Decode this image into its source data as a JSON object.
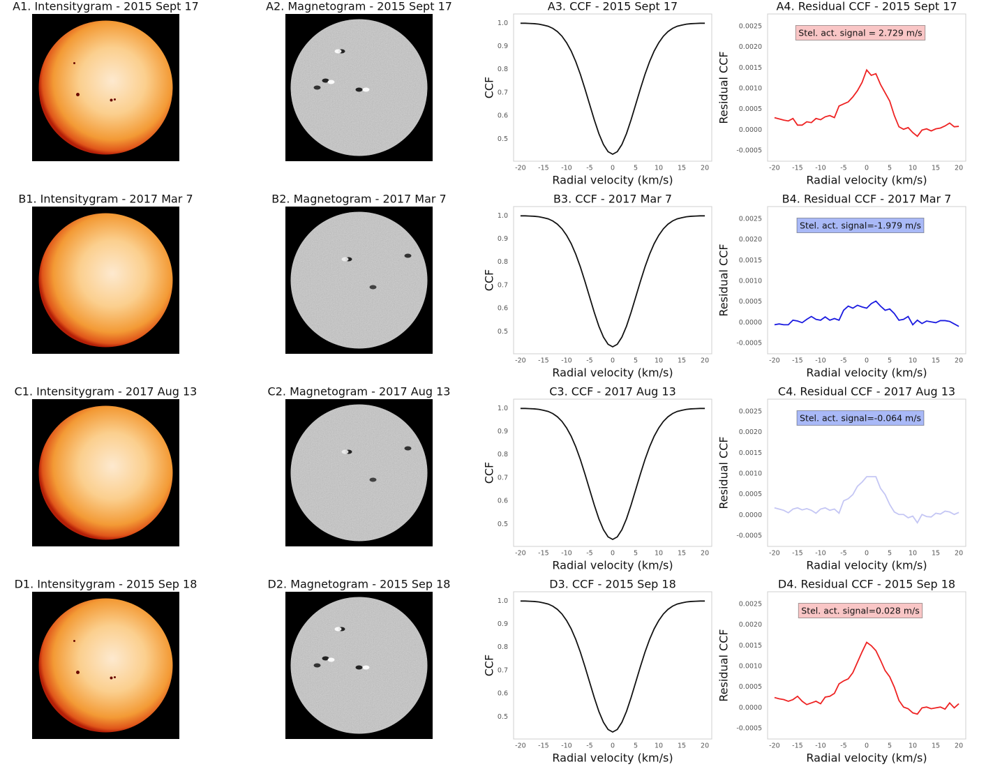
{
  "images": [
    {
      "title": "A1. Intensitygram - 2015 Sept 17",
      "kind": "intensity"
    },
    {
      "title": "A2. Magnetogram - 2015 Sept 17",
      "kind": "magnetogram"
    },
    {
      "title": "B1. Intensitygram - 2017 Mar 7",
      "kind": "intensity"
    },
    {
      "title": "B2. Magnetogram - 2017 Mar 7",
      "kind": "magnetogram"
    },
    {
      "title": "C1. Intensitygram - 2017 Aug 13",
      "kind": "intensity"
    },
    {
      "title": "C2. Magnetogram - 2017 Aug 13",
      "kind": "magnetogram"
    },
    {
      "title": "D1. Intensitygram - 2015 Sep 18",
      "kind": "intensity"
    },
    {
      "title": "D2. Magnetogram - 2015 Sep 18",
      "kind": "magnetogram"
    }
  ],
  "chart_data": [
    {
      "type": "line",
      "title": "A3. CCF - 2015 Sept 17",
      "xlabel": "Radial velocity (km/s)",
      "ylabel": "CCF",
      "x": [
        -20,
        -19,
        -18,
        -17,
        -16,
        -15,
        -14,
        -13,
        -12,
        -11,
        -10,
        -9,
        -8,
        -7,
        -6,
        -5,
        -4,
        -3,
        -2,
        -1,
        0,
        1,
        2,
        3,
        4,
        5,
        6,
        7,
        8,
        9,
        10,
        11,
        12,
        13,
        14,
        15,
        16,
        17,
        18,
        19,
        20
      ],
      "series": [
        {
          "color": "#111111",
          "values": [
            1.0,
            1.0,
            0.999,
            0.998,
            0.996,
            0.992,
            0.987,
            0.978,
            0.964,
            0.944,
            0.916,
            0.88,
            0.834,
            0.779,
            0.716,
            0.65,
            0.584,
            0.524,
            0.477,
            0.446,
            0.435,
            0.446,
            0.477,
            0.524,
            0.584,
            0.65,
            0.716,
            0.779,
            0.834,
            0.88,
            0.916,
            0.944,
            0.964,
            0.978,
            0.987,
            0.992,
            0.996,
            0.998,
            0.999,
            1.0,
            1.0
          ]
        }
      ],
      "xlim": [
        -21.5,
        21.5
      ],
      "ylim": [
        0.405,
        1.04
      ],
      "xticks": [
        -20,
        -15,
        -10,
        -5,
        0,
        5,
        10,
        15,
        20
      ],
      "yticks": [
        0.5,
        0.6,
        0.7,
        0.8,
        0.9,
        {
          "value": 1,
          "label": "1.0"
        }
      ],
      "grid": false
    },
    {
      "type": "line",
      "title": "A4. Residual CCF - 2015 Sept 17",
      "xlabel": "Radial velocity (km/s)",
      "ylabel": "Residual CCF",
      "x": [
        -20,
        -19,
        -18,
        -17,
        -16,
        -15,
        -14,
        -13,
        -12,
        -11,
        -10,
        -9,
        -8,
        -7,
        -6,
        -5,
        -4,
        -3,
        -2,
        -1,
        0,
        1,
        2,
        3,
        4,
        5,
        6,
        7,
        8,
        9,
        10,
        11,
        12,
        13,
        14,
        15,
        16,
        17,
        18,
        19,
        20
      ],
      "series": [
        {
          "color": "#ee2222",
          "values": [
            0.0003,
            0.00027,
            0.00024,
            0.00022,
            0.00028,
            0.00012,
            0.00012,
            0.0002,
            0.00018,
            0.00028,
            0.00025,
            0.00032,
            0.00035,
            0.0003,
            0.00058,
            0.00063,
            0.00068,
            0.0008,
            0.00095,
            0.00115,
            0.00145,
            0.00132,
            0.00136,
            0.0011,
            0.0009,
            0.0007,
            0.00035,
            8e-05,
            2e-05,
            6e-05,
            -6e-05,
            -0.00015,
            0,
            3e-05,
            -2e-05,
            3e-05,
            5e-05,
            0.0001,
            0.00017,
            8e-05,
            9e-05
          ]
        }
      ],
      "xlim": [
        -21.5,
        21.5
      ],
      "ylim": [
        -0.00075,
        0.0028
      ],
      "xticks": [
        -20,
        -15,
        -10,
        -5,
        0,
        5,
        10,
        15,
        20
      ],
      "yticks": [
        {
          "value": -0.0005,
          "label": "-0.0005"
        },
        {
          "value": 0,
          "label": "0.0000"
        },
        {
          "value": 0.0005,
          "label": "0.0005"
        },
        {
          "value": 0.001,
          "label": "0.0010"
        },
        {
          "value": 0.0015,
          "label": "0.0015"
        },
        {
          "value": 0.002,
          "label": "0.0020"
        },
        {
          "value": 0.0025,
          "label": "0.0025"
        }
      ],
      "annotation": "Stel. act. signal = 2.729 m/s",
      "annotation_color": "#f9c6c6",
      "grid": false
    },
    {
      "type": "line",
      "title": "B3. CCF - 2017 Mar 7",
      "xlabel": "Radial velocity (km/s)",
      "ylabel": "CCF",
      "x": [
        -20,
        -19,
        -18,
        -17,
        -16,
        -15,
        -14,
        -13,
        -12,
        -11,
        -10,
        -9,
        -8,
        -7,
        -6,
        -5,
        -4,
        -3,
        -2,
        -1,
        0,
        1,
        2,
        3,
        4,
        5,
        6,
        7,
        8,
        9,
        10,
        11,
        12,
        13,
        14,
        15,
        16,
        17,
        18,
        19,
        20
      ],
      "series": [
        {
          "color": "#111111",
          "values": [
            1.0,
            1.0,
            0.999,
            0.998,
            0.996,
            0.992,
            0.987,
            0.978,
            0.964,
            0.944,
            0.916,
            0.88,
            0.834,
            0.779,
            0.716,
            0.65,
            0.584,
            0.524,
            0.477,
            0.446,
            0.435,
            0.446,
            0.477,
            0.524,
            0.584,
            0.65,
            0.716,
            0.779,
            0.834,
            0.88,
            0.916,
            0.944,
            0.964,
            0.978,
            0.987,
            0.992,
            0.996,
            0.998,
            0.999,
            1.0,
            1.0
          ]
        }
      ],
      "xlim": [
        -21.5,
        21.5
      ],
      "ylim": [
        0.405,
        1.04
      ],
      "xticks": [
        -20,
        -15,
        -10,
        -5,
        0,
        5,
        10,
        15,
        20
      ],
      "yticks": [
        0.5,
        0.6,
        0.7,
        0.8,
        0.9,
        {
          "value": 1,
          "label": "1.0"
        }
      ],
      "grid": false
    },
    {
      "type": "line",
      "title": "B4. Residual CCF - 2017 Mar 7",
      "xlabel": "Radial velocity (km/s)",
      "ylabel": "Residual CCF",
      "x": [
        -20,
        -19,
        -18,
        -17,
        -16,
        -15,
        -14,
        -13,
        -12,
        -11,
        -10,
        -9,
        -8,
        -7,
        -6,
        -5,
        -4,
        -3,
        -2,
        -1,
        0,
        1,
        2,
        3,
        4,
        5,
        6,
        7,
        8,
        9,
        10,
        11,
        12,
        13,
        14,
        15,
        16,
        17,
        18,
        19,
        20
      ],
      "series": [
        {
          "color": "#1a1ae0",
          "values": [
            -5e-05,
            -3e-05,
            -5e-05,
            -5e-05,
            6e-05,
            4e-05,
            0,
            8e-05,
            0.00015,
            8e-05,
            6e-05,
            0.00014,
            6e-05,
            0.0001,
            6e-05,
            0.0003,
            0.0004,
            0.00035,
            0.00042,
            0.00038,
            0.00035,
            0.00046,
            0.00052,
            0.0004,
            0.0003,
            0.00033,
            0.00022,
            6e-05,
            8e-05,
            0.00015,
            -5e-05,
            6e-05,
            -2e-05,
            4e-05,
            2e-05,
            0,
            5e-05,
            5e-05,
            3e-05,
            -3e-05,
            -9e-05
          ]
        }
      ],
      "xlim": [
        -21.5,
        21.5
      ],
      "ylim": [
        -0.00075,
        0.0028
      ],
      "xticks": [
        -20,
        -15,
        -10,
        -5,
        0,
        5,
        10,
        15,
        20
      ],
      "yticks": [
        {
          "value": -0.0005,
          "label": "-0.0005"
        },
        {
          "value": 0,
          "label": "0.0000"
        },
        {
          "value": 0.0005,
          "label": "0.0005"
        },
        {
          "value": 0.001,
          "label": "0.0010"
        },
        {
          "value": 0.0015,
          "label": "0.0015"
        },
        {
          "value": 0.002,
          "label": "0.0020"
        },
        {
          "value": 0.0025,
          "label": "0.0025"
        }
      ],
      "annotation": "Stel. act. signal=-1.979 m/s",
      "annotation_color": "#a9b9f7",
      "grid": false
    },
    {
      "type": "line",
      "title": "C3. CCF - 2017 Aug 13",
      "xlabel": "Radial velocity (km/s)",
      "ylabel": "CCF",
      "x": [
        -20,
        -19,
        -18,
        -17,
        -16,
        -15,
        -14,
        -13,
        -12,
        -11,
        -10,
        -9,
        -8,
        -7,
        -6,
        -5,
        -4,
        -3,
        -2,
        -1,
        0,
        1,
        2,
        3,
        4,
        5,
        6,
        7,
        8,
        9,
        10,
        11,
        12,
        13,
        14,
        15,
        16,
        17,
        18,
        19,
        20
      ],
      "series": [
        {
          "color": "#111111",
          "values": [
            1.0,
            1.0,
            0.999,
            0.998,
            0.996,
            0.992,
            0.987,
            0.978,
            0.964,
            0.944,
            0.916,
            0.88,
            0.834,
            0.779,
            0.716,
            0.65,
            0.584,
            0.524,
            0.477,
            0.446,
            0.435,
            0.446,
            0.477,
            0.524,
            0.584,
            0.65,
            0.716,
            0.779,
            0.834,
            0.88,
            0.916,
            0.944,
            0.964,
            0.978,
            0.987,
            0.992,
            0.996,
            0.998,
            0.999,
            1.0,
            1.0
          ]
        }
      ],
      "xlim": [
        -21.5,
        21.5
      ],
      "ylim": [
        0.405,
        1.04
      ],
      "xticks": [
        -20,
        -15,
        -10,
        -5,
        0,
        5,
        10,
        15,
        20
      ],
      "yticks": [
        0.5,
        0.6,
        0.7,
        0.8,
        0.9,
        {
          "value": 1,
          "label": "1.0"
        }
      ],
      "grid": false
    },
    {
      "type": "line",
      "title": "C4. Residual CCF - 2017 Aug 13",
      "xlabel": "Radial velocity (km/s)",
      "ylabel": "Residual CCF",
      "x": [
        -20,
        -19,
        -18,
        -17,
        -16,
        -15,
        -14,
        -13,
        -12,
        -11,
        -10,
        -9,
        -8,
        -7,
        -6,
        -5,
        -4,
        -3,
        -2,
        -1,
        0,
        1,
        2,
        3,
        4,
        5,
        6,
        7,
        8,
        9,
        10,
        11,
        12,
        13,
        14,
        15,
        16,
        17,
        18,
        19,
        20
      ],
      "series": [
        {
          "color": "#c4c6f4",
          "values": [
            0.00018,
            0.00015,
            0.00012,
            6e-05,
            0.00015,
            0.00018,
            0.00013,
            0.00016,
            0.00012,
            5e-05,
            0.00015,
            0.00018,
            0.00012,
            0.00015,
            5e-05,
            0.00035,
            0.0004,
            0.0005,
            0.0007,
            0.0008,
            0.00093,
            0.00093,
            0.00093,
            0.00065,
            0.0005,
            0.00026,
            8e-05,
            2e-05,
            2e-05,
            -6e-05,
            -2e-05,
            -0.00018,
            2e-05,
            -3e-05,
            -4e-05,
            5e-05,
            3e-05,
            0.0001,
            8e-05,
            2e-05,
            7e-05
          ]
        }
      ],
      "xlim": [
        -21.5,
        21.5
      ],
      "ylim": [
        -0.00075,
        0.0028
      ],
      "xticks": [
        -20,
        -15,
        -10,
        -5,
        0,
        5,
        10,
        15,
        20
      ],
      "yticks": [
        {
          "value": -0.0005,
          "label": "-0.0005"
        },
        {
          "value": 0,
          "label": "0.0000"
        },
        {
          "value": 0.0005,
          "label": "0.0005"
        },
        {
          "value": 0.001,
          "label": "0.0010"
        },
        {
          "value": 0.0015,
          "label": "0.0015"
        },
        {
          "value": 0.002,
          "label": "0.0020"
        },
        {
          "value": 0.0025,
          "label": "0.0025"
        }
      ],
      "annotation": "Stel. act. signal=-0.064 m/s",
      "annotation_color": "#a9b9f7",
      "grid": false
    },
    {
      "type": "line",
      "title": "D3. CCF - 2015 Sep 18",
      "xlabel": "Radial velocity (km/s)",
      "ylabel": "CCF",
      "x": [
        -20,
        -19,
        -18,
        -17,
        -16,
        -15,
        -14,
        -13,
        -12,
        -11,
        -10,
        -9,
        -8,
        -7,
        -6,
        -5,
        -4,
        -3,
        -2,
        -1,
        0,
        1,
        2,
        3,
        4,
        5,
        6,
        7,
        8,
        9,
        10,
        11,
        12,
        13,
        14,
        15,
        16,
        17,
        18,
        19,
        20
      ],
      "series": [
        {
          "color": "#111111",
          "values": [
            1.0,
            1.0,
            0.999,
            0.998,
            0.996,
            0.992,
            0.987,
            0.978,
            0.964,
            0.944,
            0.916,
            0.88,
            0.834,
            0.779,
            0.716,
            0.65,
            0.584,
            0.524,
            0.477,
            0.446,
            0.435,
            0.446,
            0.477,
            0.524,
            0.584,
            0.65,
            0.716,
            0.779,
            0.834,
            0.88,
            0.916,
            0.944,
            0.964,
            0.978,
            0.987,
            0.992,
            0.996,
            0.998,
            0.999,
            1.0,
            1.0
          ]
        }
      ],
      "xlim": [
        -21.5,
        21.5
      ],
      "ylim": [
        0.405,
        1.04
      ],
      "xticks": [
        -20,
        -15,
        -10,
        -5,
        0,
        5,
        10,
        15,
        20
      ],
      "yticks": [
        0.5,
        0.6,
        0.7,
        0.8,
        0.9,
        {
          "value": 1,
          "label": "1.0"
        }
      ],
      "grid": false
    },
    {
      "type": "line",
      "title": "D4. Residual CCF - 2015 Sep 18",
      "xlabel": "Radial velocity (km/s)",
      "ylabel": "Residual CCF",
      "x": [
        -20,
        -19,
        -18,
        -17,
        -16,
        -15,
        -14,
        -13,
        -12,
        -11,
        -10,
        -9,
        -8,
        -7,
        -6,
        -5,
        -4,
        -3,
        -2,
        -1,
        0,
        1,
        2,
        3,
        4,
        5,
        6,
        7,
        8,
        9,
        10,
        11,
        12,
        13,
        14,
        15,
        16,
        17,
        18,
        19,
        20
      ],
      "series": [
        {
          "color": "#ee2222",
          "values": [
            0.00025,
            0.00022,
            0.0002,
            0.00016,
            0.0002,
            0.00028,
            0.00016,
            8e-05,
            0.00012,
            0.00016,
            0.0001,
            0.00026,
            0.00028,
            0.00035,
            0.00058,
            0.00065,
            0.0007,
            0.00085,
            0.0011,
            0.00135,
            0.00158,
            0.0015,
            0.00138,
            0.00115,
            0.0009,
            0.00075,
            0.0005,
            0.00018,
            2e-05,
            -2e-05,
            -0.00012,
            -0.00015,
            0,
            2e-05,
            -2e-05,
            0,
            2e-05,
            -3e-05,
            0.00012,
            0,
            0.0001
          ]
        }
      ],
      "xlim": [
        -21.5,
        21.5
      ],
      "ylim": [
        -0.00075,
        0.0028
      ],
      "xticks": [
        -20,
        -15,
        -10,
        -5,
        0,
        5,
        10,
        15,
        20
      ],
      "yticks": [
        {
          "value": -0.0005,
          "label": "-0.0005"
        },
        {
          "value": 0,
          "label": "0.0000"
        },
        {
          "value": 0.0005,
          "label": "0.0005"
        },
        {
          "value": 0.001,
          "label": "0.0010"
        },
        {
          "value": 0.0015,
          "label": "0.0015"
        },
        {
          "value": 0.002,
          "label": "0.0020"
        },
        {
          "value": 0.0025,
          "label": "0.0025"
        }
      ],
      "annotation": "Stel. act. signal=0.028 m/s",
      "annotation_color": "#f9c6c6",
      "grid": false
    }
  ]
}
